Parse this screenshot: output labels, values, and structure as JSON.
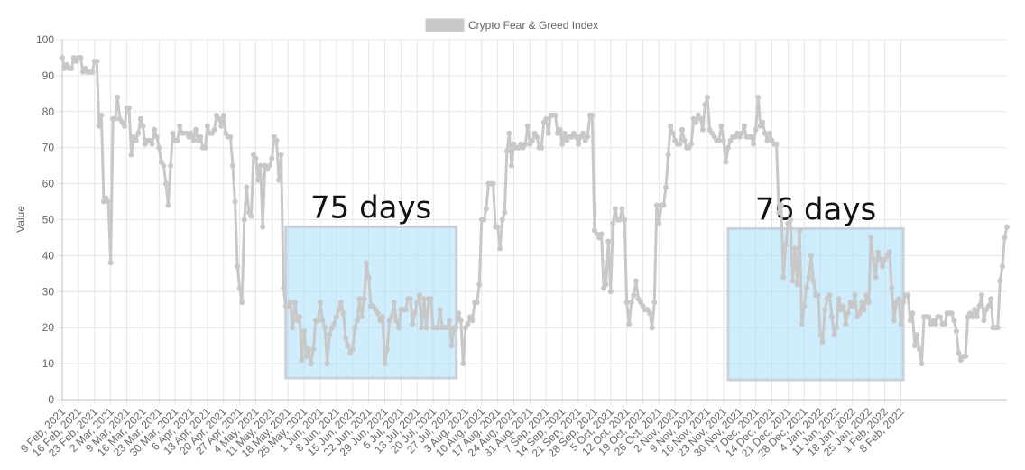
{
  "chart_data": {
    "type": "line",
    "ylabel": "Value",
    "ylim": [
      0,
      100
    ],
    "yticks": [
      0,
      10,
      20,
      30,
      40,
      50,
      60,
      70,
      80,
      90,
      100
    ],
    "grid": true,
    "legend_position": "top",
    "x_tick_labels": [
      "9 Feb, 2021",
      "16 Feb, 2021",
      "23 Feb, 2021",
      "2 Mar, 2021",
      "9 Mar, 2021",
      "16 Mar, 2021",
      "23 Mar, 2021",
      "30 Mar, 2021",
      "6 Apr, 2021",
      "13 Apr, 2021",
      "20 Apr, 2021",
      "27 Apr, 2021",
      "4 May, 2021",
      "11 May, 2021",
      "18 May, 2021",
      "25 May, 2021",
      "1 Jun, 2021",
      "8 Jun, 2021",
      "15 Jun, 2021",
      "22 Jun, 2021",
      "29 Jun, 2021",
      "6 Jul, 2021",
      "13 Jul, 2021",
      "20 Jul, 2021",
      "27 Jul, 2021",
      "3 Aug, 2021",
      "10 Aug, 2021",
      "17 Aug, 2021",
      "24 Aug, 2021",
      "31 Aug, 2021",
      "7 Sep, 2021",
      "14 Sep, 2021",
      "21 Sep, 2021",
      "28 Sep, 2021",
      "5 Oct, 2021",
      "12 Oct, 2021",
      "19 Oct, 2021",
      "26 Oct, 2021",
      "2 Nov, 2021",
      "9 Nov, 2021",
      "16 Nov, 2021",
      "23 Nov, 2021",
      "30 Nov, 2021",
      "7 Dec, 2021",
      "14 Dec, 2021",
      "21 Dec, 2021",
      "28 Dec, 2021",
      "4 Jan, 2022",
      "11 Jan, 2022",
      "18 Jan, 2022",
      "25 Jan, 2022",
      "1 Feb, 2022",
      "8 Feb, 2022"
    ],
    "series": [
      {
        "name": "Crypto Fear & Greed Index",
        "color": "#c8c8c8",
        "start_date": "2021-02-09",
        "values": [
          95,
          92,
          93,
          92,
          92,
          95,
          94,
          95,
          95,
          91,
          92,
          91,
          91,
          91,
          94,
          94,
          76,
          79,
          55,
          56,
          55,
          38,
          78,
          78,
          84,
          78,
          77,
          76,
          81,
          81,
          68,
          73,
          72,
          74,
          78,
          76,
          71,
          72,
          72,
          71,
          75,
          73,
          70,
          66,
          65,
          60,
          54,
          65,
          74,
          72,
          72,
          76,
          74,
          74,
          74,
          73,
          74,
          72,
          75,
          72,
          73,
          70,
          70,
          76,
          74,
          74,
          75,
          79,
          78,
          76,
          79,
          74,
          73,
          73,
          65,
          55,
          37,
          31,
          27,
          50,
          59,
          52,
          51,
          68,
          67,
          61,
          65,
          48,
          65,
          64,
          65,
          67,
          73,
          72,
          61,
          68,
          31,
          26,
          26,
          27,
          20,
          27,
          22,
          23,
          11,
          19,
          12,
          14,
          10,
          14,
          22,
          22,
          27,
          22,
          20,
          10,
          18,
          20,
          21,
          23,
          25,
          27,
          24,
          17,
          15,
          13,
          14,
          20,
          22,
          28,
          23,
          28,
          38,
          34,
          26,
          26,
          25,
          24,
          22,
          23,
          10,
          14,
          22,
          23,
          27,
          22,
          20,
          25,
          25,
          25,
          28,
          28,
          21,
          24,
          27,
          29,
          20,
          28,
          20,
          28,
          28,
          20,
          20,
          20,
          25,
          20,
          20,
          20,
          22,
          15,
          20,
          20,
          24,
          22,
          10,
          20,
          21,
          23,
          22,
          27,
          27,
          32,
          50,
          50,
          53,
          60,
          60,
          60,
          48,
          48,
          42,
          50,
          52,
          69,
          74,
          65,
          71,
          70,
          70,
          71,
          70,
          71,
          76,
          71,
          72,
          74,
          73,
          70,
          70,
          77,
          78,
          74,
          79,
          79,
          79,
          74,
          75,
          71,
          74,
          72,
          73,
          73,
          74,
          73,
          71,
          73,
          74,
          72,
          73,
          79,
          79,
          47,
          46,
          45,
          46,
          31,
          32,
          44,
          30,
          49,
          53,
          50,
          50,
          53,
          50,
          27,
          21,
          27,
          29,
          33,
          28,
          27,
          26,
          25,
          25,
          24,
          20,
          27,
          54,
          49,
          54,
          54,
          59,
          68,
          76,
          74,
          72,
          71,
          71,
          75,
          72,
          70,
          70,
          71,
          78,
          77,
          79,
          78,
          75,
          82,
          84,
          75,
          74,
          73,
          72,
          72,
          76,
          72,
          66,
          70,
          72,
          73,
          73,
          74,
          73,
          74,
          76,
          73,
          73,
          73,
          71,
          75,
          84,
          76,
          77,
          74,
          72,
          74,
          72,
          71,
          71,
          52,
          54,
          34,
          43,
          49,
          50,
          33,
          42,
          32,
          47,
          21,
          26,
          31,
          34,
          40,
          33,
          29,
          29,
          18,
          16,
          25,
          28,
          29,
          23,
          18,
          20,
          28,
          25,
          26,
          21,
          24,
          27,
          26,
          29,
          23,
          24,
          27,
          25,
          29,
          27,
          45,
          39,
          34,
          41,
          39,
          37,
          39,
          40,
          41,
          31,
          22,
          27,
          28,
          21,
          27,
          29,
          29,
          22,
          24,
          15,
          18,
          14,
          10,
          23,
          23,
          23,
          21,
          22,
          21,
          23,
          23,
          21,
          21,
          24,
          24,
          24,
          22,
          19,
          13,
          11,
          12,
          12,
          23,
          24,
          23,
          25,
          23,
          26,
          29,
          22,
          25,
          26,
          28,
          20,
          20,
          20,
          33,
          37,
          45,
          48
        ]
      }
    ],
    "annotations": [
      {
        "label": "75 days",
        "x_start": "2021-05-17",
        "x_end": "2021-07-30",
        "y_start": 6,
        "y_end": 48
      },
      {
        "label": "76 days",
        "x_start": "2021-11-25",
        "x_end": "2022-02-09",
        "y_start": 5.5,
        "y_end": 47.5
      }
    ]
  }
}
